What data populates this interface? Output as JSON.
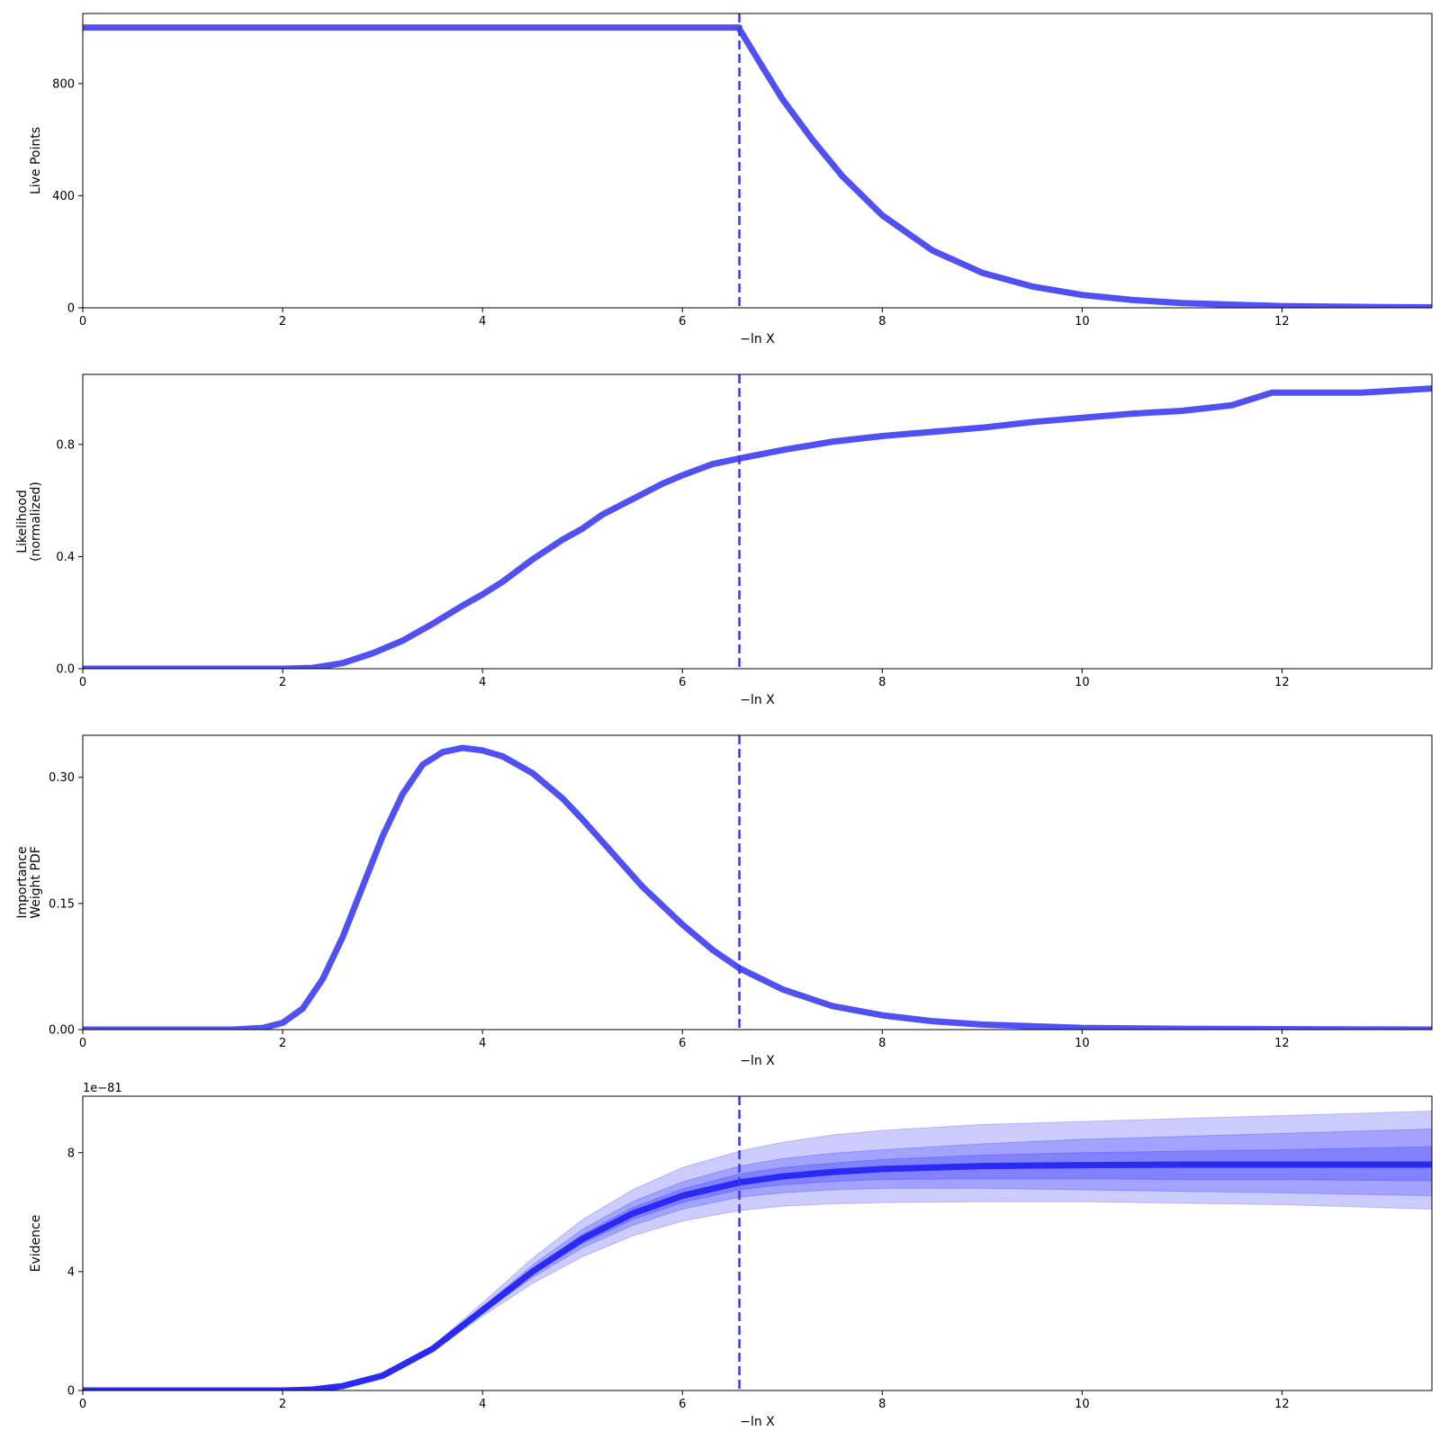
{
  "figure": {
    "colors": {
      "line": "#5050f5",
      "median": "#2a2af5",
      "band": "#0000ff",
      "vline": "#3a3af0",
      "axis": "#000000",
      "background": "#ffffff"
    }
  },
  "chart_data": [
    {
      "type": "line",
      "title": "",
      "xlabel": "−ln X",
      "ylabel": [
        "Live Points"
      ],
      "xlim": [
        0,
        13.5
      ],
      "ylim": [
        0,
        1050
      ],
      "xticks": [
        0,
        2,
        4,
        6,
        8,
        10,
        12
      ],
      "yticks": [
        0,
        400,
        800
      ],
      "ytick_labels": [
        "0",
        "400",
        "800"
      ],
      "vline_x": 6.57,
      "grid": false,
      "legend": "none",
      "series": [
        {
          "x": [
            0,
            6.57,
            6.57,
            6.8,
            7.0,
            7.3,
            7.6,
            8.0,
            8.5,
            9.0,
            9.5,
            10.0,
            10.5,
            11.0,
            12.0,
            13.0,
            13.5
          ],
          "y": [
            1000,
            1000,
            995,
            860,
            745,
            600,
            470,
            330,
            205,
            125,
            76,
            46,
            28,
            17,
            6,
            2.5,
            1.5
          ]
        }
      ]
    },
    {
      "type": "line",
      "title": "",
      "xlabel": "−ln X",
      "ylabel": [
        "Likelihood",
        "(normalized)"
      ],
      "xlim": [
        0,
        13.5
      ],
      "ylim": [
        0,
        1.05
      ],
      "xticks": [
        0,
        2,
        4,
        6,
        8,
        10,
        12
      ],
      "yticks": [
        0,
        0.4,
        0.8
      ],
      "ytick_labels": [
        "0.0",
        "0.4",
        "0.8"
      ],
      "vline_x": 6.57,
      "grid": false,
      "legend": "none",
      "series": [
        {
          "x": [
            0,
            2.0,
            2.3,
            2.6,
            2.9,
            3.2,
            3.5,
            3.8,
            4.0,
            4.2,
            4.5,
            4.8,
            5.0,
            5.2,
            5.5,
            5.8,
            6.0,
            6.3,
            6.57,
            7.0,
            7.5,
            8.0,
            8.5,
            9.0,
            9.5,
            10.0,
            10.5,
            11.0,
            11.5,
            11.9,
            12.5,
            12.8,
            13.5
          ],
          "y": [
            0,
            0,
            0.003,
            0.02,
            0.055,
            0.1,
            0.16,
            0.225,
            0.265,
            0.31,
            0.39,
            0.46,
            0.5,
            0.55,
            0.605,
            0.66,
            0.69,
            0.73,
            0.75,
            0.78,
            0.81,
            0.83,
            0.845,
            0.86,
            0.88,
            0.895,
            0.91,
            0.92,
            0.94,
            0.985,
            0.985,
            0.985,
            1.0
          ]
        }
      ]
    },
    {
      "type": "line",
      "title": "",
      "xlabel": "−ln X",
      "ylabel": [
        "Importance",
        "Weight PDF"
      ],
      "xlim": [
        0,
        13.5
      ],
      "ylim": [
        0,
        0.35
      ],
      "xticks": [
        0,
        2,
        4,
        6,
        8,
        10,
        12
      ],
      "yticks": [
        0,
        0.15,
        0.3
      ],
      "ytick_labels": [
        "0.00",
        "0.15",
        "0.30"
      ],
      "vline_x": 6.57,
      "grid": false,
      "legend": "none",
      "series": [
        {
          "x": [
            0,
            1.5,
            1.8,
            2.0,
            2.2,
            2.4,
            2.6,
            2.8,
            3.0,
            3.2,
            3.4,
            3.6,
            3.8,
            4.0,
            4.2,
            4.5,
            4.8,
            5.0,
            5.3,
            5.6,
            6.0,
            6.3,
            6.57,
            7.0,
            7.5,
            8.0,
            8.5,
            9.0,
            10.0,
            11.0,
            12.0,
            13.5
          ],
          "y": [
            0,
            0,
            0.002,
            0.008,
            0.025,
            0.06,
            0.11,
            0.17,
            0.23,
            0.28,
            0.315,
            0.33,
            0.335,
            0.332,
            0.325,
            0.305,
            0.275,
            0.25,
            0.21,
            0.17,
            0.125,
            0.095,
            0.073,
            0.048,
            0.028,
            0.017,
            0.01,
            0.006,
            0.002,
            0.001,
            0.0005,
            0
          ]
        }
      ]
    },
    {
      "type": "area",
      "title": "",
      "xlabel": "−ln X",
      "ylabel": [
        "Evidence"
      ],
      "offset_text": "1e−81",
      "xlim": [
        0,
        13.5
      ],
      "ylim": [
        0,
        9.9
      ],
      "xticks": [
        0,
        2,
        4,
        6,
        8,
        10,
        12
      ],
      "yticks": [
        0,
        4,
        8
      ],
      "ytick_labels": [
        "0",
        "4",
        "8"
      ],
      "vline_x": 6.57,
      "grid": false,
      "legend": "none",
      "x": [
        0,
        2.0,
        2.3,
        2.6,
        3.0,
        3.5,
        4.0,
        4.5,
        5.0,
        5.5,
        6.0,
        6.57,
        7.0,
        7.5,
        8.0,
        9.0,
        10.0,
        11.0,
        12.0,
        13.5
      ],
      "median": [
        0,
        0,
        0.03,
        0.15,
        0.5,
        1.4,
        2.7,
        4.0,
        5.1,
        5.95,
        6.55,
        7.0,
        7.2,
        7.35,
        7.45,
        7.55,
        7.58,
        7.6,
        7.6,
        7.6
      ],
      "bands": [
        {
          "lower": [
            0,
            0,
            0.03,
            0.14,
            0.47,
            1.3,
            2.5,
            3.6,
            4.5,
            5.2,
            5.7,
            6.05,
            6.2,
            6.28,
            6.32,
            6.35,
            6.35,
            6.3,
            6.25,
            6.1
          ],
          "upper": [
            0,
            0,
            0.03,
            0.16,
            0.53,
            1.5,
            2.95,
            4.45,
            5.75,
            6.75,
            7.5,
            8.05,
            8.35,
            8.6,
            8.75,
            8.95,
            9.05,
            9.15,
            9.25,
            9.4
          ]
        },
        {
          "lower": [
            0,
            0,
            0.03,
            0.145,
            0.48,
            1.35,
            2.6,
            3.8,
            4.8,
            5.55,
            6.1,
            6.5,
            6.65,
            6.75,
            6.8,
            6.8,
            6.75,
            6.7,
            6.65,
            6.55
          ],
          "upper": [
            0,
            0,
            0.03,
            0.155,
            0.52,
            1.45,
            2.82,
            4.22,
            5.42,
            6.35,
            7.02,
            7.55,
            7.8,
            7.98,
            8.1,
            8.3,
            8.45,
            8.55,
            8.65,
            8.8
          ]
        },
        {
          "lower": [
            0,
            0,
            0.03,
            0.148,
            0.49,
            1.37,
            2.65,
            3.9,
            4.95,
            5.75,
            6.32,
            6.75,
            6.92,
            7.03,
            7.1,
            7.12,
            7.12,
            7.1,
            7.1,
            7.05
          ],
          "upper": [
            0,
            0,
            0.03,
            0.152,
            0.51,
            1.43,
            2.75,
            4.1,
            5.25,
            6.15,
            6.78,
            7.28,
            7.5,
            7.65,
            7.77,
            7.92,
            8.0,
            8.05,
            8.1,
            8.2
          ]
        }
      ]
    }
  ]
}
